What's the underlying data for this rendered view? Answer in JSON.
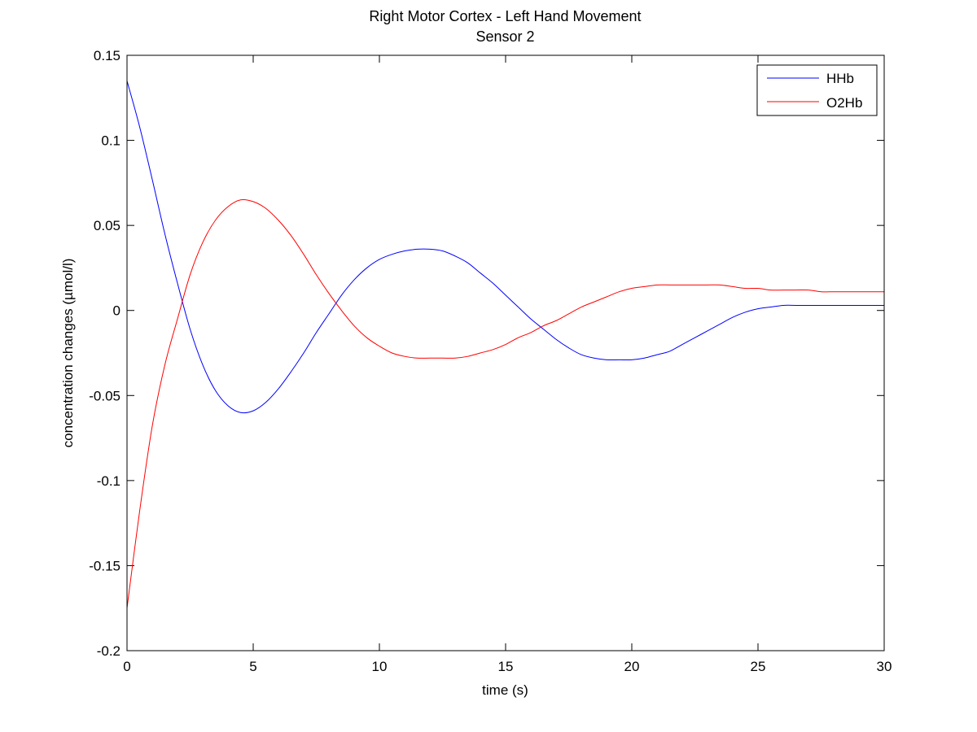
{
  "chart_data": {
    "type": "line",
    "title": "Right Motor Cortex - Left Hand Movement",
    "subtitle": "Sensor 2",
    "xlabel": "time (s)",
    "ylabel": "concentration changes (µmol/l)",
    "xlim": [
      0,
      30
    ],
    "ylim": [
      -0.2,
      0.15
    ],
    "xticks": [
      0,
      5,
      10,
      15,
      20,
      25,
      30
    ],
    "yticks": [
      -0.2,
      -0.15,
      -0.1,
      -0.05,
      0,
      0.05,
      0.1,
      0.15
    ],
    "xtick_labels": [
      "0",
      "5",
      "10",
      "15",
      "20",
      "25",
      "30"
    ],
    "ytick_labels": [
      "-0.2",
      "-0.15",
      "-0.1",
      "-0.05",
      "0",
      "0.05",
      "0.1",
      "0.15"
    ],
    "grid": false,
    "legend_position": "top-right",
    "series": [
      {
        "name": "HHb",
        "color": "#0000ff",
        "x": [
          0,
          0.5,
          1,
          1.5,
          2,
          2.5,
          3,
          3.5,
          4,
          4.5,
          5,
          5.5,
          6,
          6.5,
          7,
          7.5,
          8,
          8.5,
          9,
          9.5,
          10,
          10.5,
          11,
          11.5,
          12,
          12.5,
          13,
          13.5,
          14,
          14.5,
          15,
          15.5,
          16,
          16.5,
          17,
          17.5,
          18,
          18.5,
          19,
          19.5,
          20,
          20.5,
          21,
          21.5,
          22,
          22.5,
          23,
          23.5,
          24,
          24.5,
          25,
          25.5,
          26,
          26.5,
          27,
          27.5,
          28,
          28.5,
          29,
          29.5,
          30
        ],
        "values": [
          0.135,
          0.108,
          0.077,
          0.045,
          0.016,
          -0.011,
          -0.032,
          -0.047,
          -0.056,
          -0.06,
          -0.059,
          -0.054,
          -0.046,
          -0.036,
          -0.025,
          -0.013,
          -0.002,
          0.009,
          0.018,
          0.025,
          0.03,
          0.033,
          0.035,
          0.036,
          0.036,
          0.035,
          0.032,
          0.028,
          0.022,
          0.016,
          0.009,
          0.002,
          -0.005,
          -0.011,
          -0.017,
          -0.022,
          -0.026,
          -0.028,
          -0.029,
          -0.029,
          -0.029,
          -0.028,
          -0.026,
          -0.024,
          -0.02,
          -0.016,
          -0.012,
          -0.008,
          -0.004,
          -0.001,
          0.001,
          0.002,
          0.003,
          0.003,
          0.003,
          0.003,
          0.003,
          0.003,
          0.003,
          0.003,
          0.003
        ]
      },
      {
        "name": "O2Hb",
        "color": "#ff0000",
        "x": [
          0,
          0.5,
          1,
          1.5,
          2,
          2.5,
          3,
          3.5,
          4,
          4.5,
          5,
          5.5,
          6,
          6.5,
          7,
          7.5,
          8,
          8.5,
          9,
          9.5,
          10,
          10.5,
          11,
          11.5,
          12,
          12.5,
          13,
          13.5,
          14,
          14.5,
          15,
          15.5,
          16,
          16.5,
          17,
          17.5,
          18,
          18.5,
          19,
          19.5,
          20,
          20.5,
          21,
          21.5,
          22,
          22.5,
          23,
          23.5,
          24,
          24.5,
          25,
          25.5,
          26,
          26.5,
          27,
          27.5,
          28,
          28.5,
          29,
          29.5,
          30
        ],
        "values": [
          -0.175,
          -0.118,
          -0.068,
          -0.032,
          -0.005,
          0.021,
          0.04,
          0.053,
          0.061,
          0.065,
          0.064,
          0.06,
          0.053,
          0.044,
          0.033,
          0.021,
          0.01,
          0.0,
          -0.009,
          -0.016,
          -0.021,
          -0.025,
          -0.027,
          -0.028,
          -0.028,
          -0.028,
          -0.028,
          -0.027,
          -0.025,
          -0.023,
          -0.02,
          -0.016,
          -0.013,
          -0.009,
          -0.006,
          -0.002,
          0.002,
          0.005,
          0.008,
          0.011,
          0.013,
          0.014,
          0.015,
          0.015,
          0.015,
          0.015,
          0.015,
          0.015,
          0.014,
          0.013,
          0.013,
          0.012,
          0.012,
          0.012,
          0.012,
          0.011,
          0.011,
          0.011,
          0.011,
          0.011,
          0.011
        ]
      }
    ]
  }
}
